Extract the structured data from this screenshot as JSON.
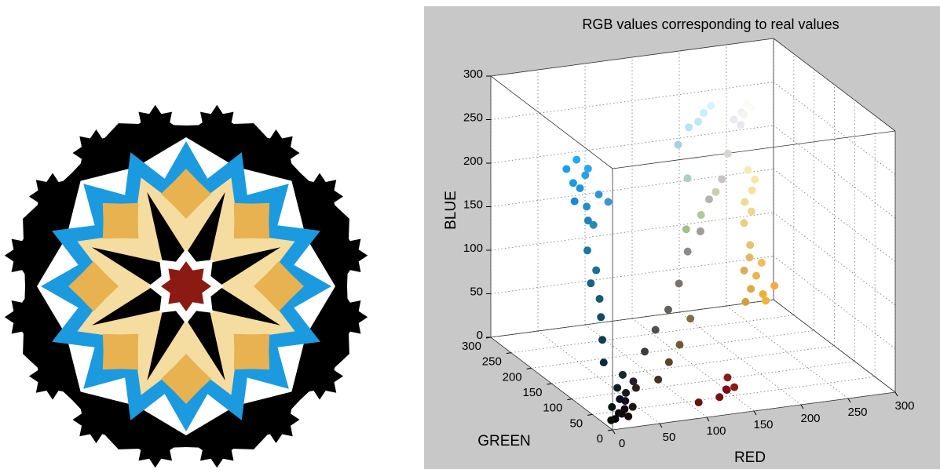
{
  "chart_data": {
    "type": "scatter3d",
    "title": "RGB values corresponding to real values",
    "xlabel": "RED",
    "ylabel": "GREEN",
    "zlabel": "BLUE",
    "xlim": [
      0,
      300
    ],
    "ylim": [
      0,
      300
    ],
    "zlim": [
      0,
      300
    ],
    "xticks": [
      0,
      50,
      100,
      150,
      200,
      250,
      300
    ],
    "yticks": [
      0,
      50,
      100,
      150,
      200,
      250,
      300
    ],
    "zticks": [
      0,
      50,
      100,
      150,
      200,
      250,
      300
    ],
    "grid": true,
    "x": [
      5,
      10,
      15,
      20,
      8,
      25,
      12,
      30,
      18,
      35,
      5,
      22,
      40,
      28,
      15,
      10,
      15,
      20,
      25,
      20,
      30,
      25,
      30,
      20,
      40,
      35,
      25,
      45,
      30,
      50,
      20,
      40,
      60,
      35,
      60,
      80,
      100,
      120,
      140,
      160,
      180,
      200,
      215,
      70,
      90,
      110,
      130,
      120,
      130,
      140,
      125,
      100,
      135,
      230,
      220,
      240,
      235,
      225,
      245,
      210,
      230,
      240,
      215,
      245,
      240,
      250,
      235,
      245,
      230,
      180,
      160,
      200,
      170,
      200,
      190,
      210,
      180,
      160,
      250,
      240,
      245,
      230,
      255,
      235
    ],
    "y": [
      5,
      8,
      12,
      15,
      20,
      25,
      10,
      20,
      30,
      30,
      15,
      12,
      35,
      40,
      5,
      45,
      60,
      75,
      90,
      100,
      110,
      120,
      150,
      140,
      160,
      145,
      155,
      165,
      130,
      150,
      160,
      140,
      150,
      170,
      60,
      80,
      95,
      115,
      140,
      155,
      180,
      195,
      215,
      50,
      70,
      90,
      110,
      15,
      20,
      25,
      10,
      20,
      30,
      180,
      170,
      190,
      175,
      185,
      170,
      160,
      195,
      180,
      175,
      225,
      215,
      230,
      220,
      235,
      210,
      200,
      190,
      210,
      210,
      240,
      230,
      245,
      230,
      210,
      250,
      240,
      245,
      235,
      250,
      230
    ],
    "z": [
      10,
      15,
      12,
      25,
      18,
      30,
      30,
      15,
      35,
      40,
      5,
      8,
      30,
      45,
      20,
      60,
      80,
      100,
      115,
      130,
      140,
      160,
      220,
      210,
      230,
      200,
      225,
      235,
      190,
      210,
      240,
      180,
      200,
      245,
      60,
      75,
      90,
      110,
      135,
      150,
      175,
      190,
      210,
      30,
      40,
      50,
      70,
      15,
      20,
      20,
      25,
      10,
      30,
      80,
      70,
      90,
      60,
      100,
      70,
      60,
      110,
      50,
      90,
      160,
      140,
      170,
      150,
      180,
      130,
      150,
      140,
      170,
      190,
      250,
      245,
      255,
      240,
      230,
      250,
      245,
      240,
      240,
      245,
      235
    ]
  }
}
